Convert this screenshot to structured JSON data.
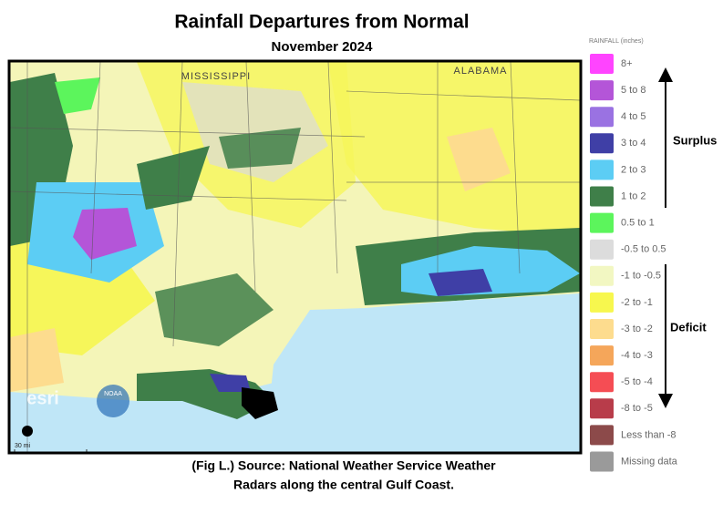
{
  "header": {
    "title": "Rainfall Departures from Normal",
    "subtitle": "November 2024"
  },
  "map": {
    "state_labels": [
      "MISSISSIPPI",
      "ALABAMA"
    ],
    "scale": "30 mi",
    "logos": [
      "esri",
      "NOAA"
    ]
  },
  "legend": {
    "title": "RAINFALL (inches)",
    "items": [
      {
        "label": "8+",
        "color": "#ff44ff"
      },
      {
        "label": "5 to 8",
        "color": "#b455d8"
      },
      {
        "label": "4 to 5",
        "color": "#9a72e2"
      },
      {
        "label": "3 to 4",
        "color": "#3f3fa6"
      },
      {
        "label": "2 to 3",
        "color": "#5ccdf4"
      },
      {
        "label": "1 to 2",
        "color": "#3f7f49"
      },
      {
        "label": "0.5 to 1",
        "color": "#5cf55c"
      },
      {
        "label": "-0.5 to 0.5",
        "color": "#dcdcdc"
      },
      {
        "label": "-1 to -0.5",
        "color": "#f2f7c2"
      },
      {
        "label": "-2 to -1",
        "color": "#f7f74e"
      },
      {
        "label": "-3 to -2",
        "color": "#fddc8e"
      },
      {
        "label": "-4 to -3",
        "color": "#f5a65a"
      },
      {
        "label": "-5 to -4",
        "color": "#f54d54"
      },
      {
        "label": "-8 to -5",
        "color": "#b83c4a"
      },
      {
        "label": "Less than -8",
        "color": "#8c4a4a"
      },
      {
        "label": "Missing data",
        "color": "#9a9a9a"
      }
    ],
    "surplus": "Surplus",
    "deficit": "Deficit"
  },
  "caption": [
    "(Fig L.) Source: National Weather Service Weather",
    "Radars along the central Gulf Coast."
  ]
}
